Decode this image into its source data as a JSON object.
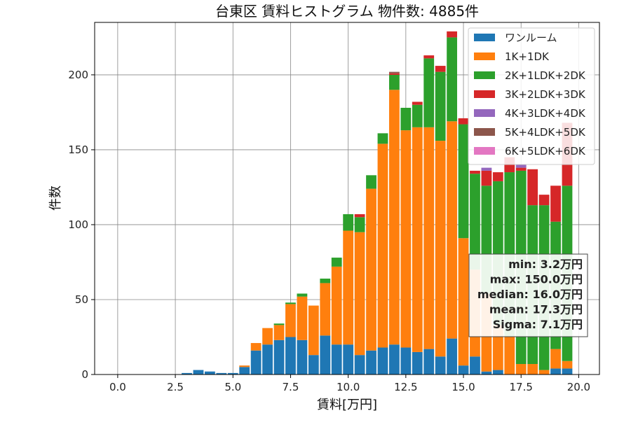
{
  "chart_data": {
    "type": "bar",
    "stacked": true,
    "title": "台東区 賃料ヒストグラム 物件数: 4885件",
    "xlabel": "賃料[万円]",
    "ylabel": "件数",
    "xlim": [
      -1,
      20.9
    ],
    "ylim": [
      0,
      235
    ],
    "bin_width": 0.5,
    "grid": true,
    "legend_position": "top-right",
    "x_ticks": [
      0.0,
      2.5,
      5.0,
      7.5,
      10.0,
      12.5,
      15.0,
      17.5,
      20.0
    ],
    "x_tick_labels": [
      "0.0",
      "2.5",
      "5.0",
      "7.5",
      "10.0",
      "12.5",
      "15.0",
      "17.5",
      "20.0"
    ],
    "y_ticks": [
      0,
      50,
      100,
      150,
      200
    ],
    "y_tick_labels": [
      "0",
      "50",
      "100",
      "150",
      "200"
    ],
    "bins": [
      3.0,
      3.5,
      4.0,
      4.5,
      5.0,
      5.5,
      6.0,
      6.5,
      7.0,
      7.5,
      8.0,
      8.5,
      9.0,
      9.5,
      10.0,
      10.5,
      11.0,
      11.5,
      12.0,
      12.5,
      13.0,
      13.5,
      14.0,
      14.5,
      15.0,
      15.5,
      16.0,
      16.5,
      17.0,
      17.5,
      18.0,
      18.5,
      19.0,
      19.5
    ],
    "series": [
      {
        "name": "ワンルーム",
        "color": "#1f77b4",
        "values": [
          1,
          3,
          2,
          1,
          1,
          5,
          16,
          20,
          23,
          25,
          23,
          13,
          26,
          20,
          20,
          13,
          16,
          18,
          20,
          18,
          15,
          17,
          12,
          24,
          6,
          12,
          2,
          3,
          0,
          0,
          0,
          0,
          4,
          4
        ]
      },
      {
        "name": "1K+1DK",
        "color": "#ff7f0e",
        "values": [
          0,
          0,
          0,
          0,
          0,
          1,
          5,
          11,
          10,
          22,
          29,
          33,
          35,
          52,
          76,
          82,
          108,
          136,
          170,
          145,
          150,
          148,
          144,
          145,
          85,
          58,
          52,
          30,
          25,
          7,
          7,
          3,
          13,
          5
        ]
      },
      {
        "name": "2K+1LDK+2DK",
        "color": "#2ca02c",
        "values": [
          0,
          0,
          0,
          0,
          0,
          0,
          0,
          0,
          1,
          1,
          2,
          0,
          3,
          6,
          11,
          10,
          9,
          7,
          10,
          15,
          15,
          46,
          46,
          56,
          76,
          64,
          72,
          96,
          110,
          129,
          106,
          110,
          85,
          117
        ]
      },
      {
        "name": "3K+2LDK+3DK",
        "color": "#d62728",
        "values": [
          0,
          0,
          0,
          0,
          0,
          0,
          0,
          0,
          0,
          0,
          0,
          0,
          0,
          0,
          0,
          2,
          0,
          0,
          1,
          0,
          2,
          2,
          4,
          4,
          4,
          2,
          10,
          6,
          10,
          2,
          24,
          7,
          24,
          42
        ]
      },
      {
        "name": "4K+3LDK+4DK",
        "color": "#9467bd",
        "values": [
          0,
          0,
          0,
          0,
          0,
          0,
          0,
          0,
          0,
          0,
          0,
          0,
          0,
          0,
          0,
          0,
          0,
          0,
          0,
          0,
          0,
          0,
          0,
          0,
          0,
          0,
          2,
          0,
          0,
          2,
          0,
          0,
          0,
          0
        ]
      },
      {
        "name": "5K+4LDK+5DK",
        "color": "#8c564b",
        "values": [
          0,
          0,
          0,
          0,
          0,
          0,
          0,
          0,
          0,
          0,
          0,
          0,
          0,
          0,
          0,
          0,
          0,
          0,
          1,
          0,
          0,
          0,
          0,
          0,
          0,
          0,
          0,
          0,
          0,
          0,
          0,
          0,
          0,
          0
        ]
      },
      {
        "name": "6K+5LDK+6DK",
        "color": "#e377c2",
        "values": [
          0,
          0,
          0,
          0,
          0,
          0,
          0,
          0,
          0,
          0,
          0,
          0,
          0,
          0,
          0,
          0,
          0,
          0,
          0,
          0,
          0,
          0,
          0,
          0,
          0,
          0,
          0,
          0,
          0,
          0,
          0,
          0,
          0,
          0
        ]
      }
    ],
    "stats_box": [
      "min: 3.2万円",
      "max: 150.0万円",
      "median: 16.0万円",
      "mean: 17.3万円",
      "Sigma: 7.1万円"
    ]
  }
}
